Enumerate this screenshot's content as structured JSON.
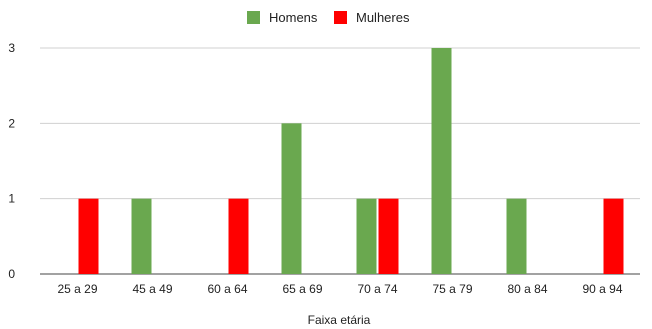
{
  "chart_data": {
    "type": "bar",
    "title": "",
    "xlabel": "Faixa etária",
    "ylabel": "",
    "categories": [
      "25 a 29",
      "45 a 49",
      "60 a 64",
      "65 a 69",
      "70 a 74",
      "75 a 79",
      "80 a 84",
      "90 a 94"
    ],
    "series": [
      {
        "name": "Homens",
        "color": "#6aa84f",
        "values": [
          0,
          1,
          0,
          2,
          1,
          3,
          1,
          0
        ]
      },
      {
        "name": "Mulheres",
        "color": "#ff0000",
        "values": [
          1,
          0,
          1,
          0,
          1,
          0,
          0,
          1
        ]
      }
    ],
    "yticks": [
      "0",
      "1",
      "2",
      "3"
    ],
    "ylim": [
      0,
      3
    ],
    "grid": true,
    "legend": "top-center"
  }
}
